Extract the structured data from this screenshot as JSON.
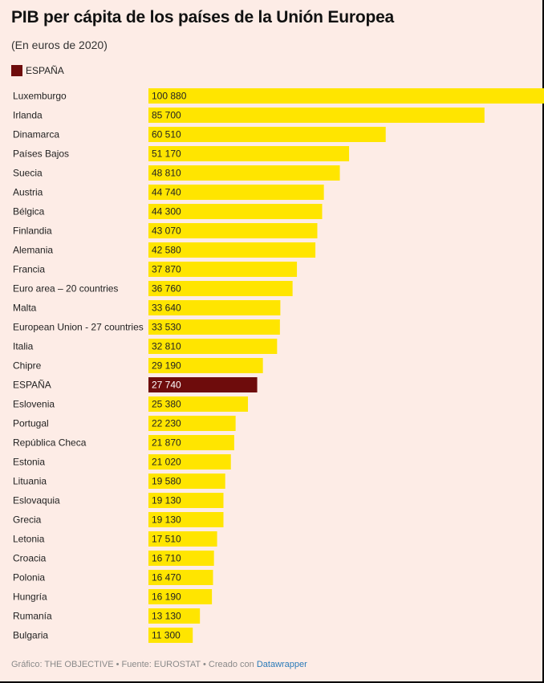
{
  "chart_data": {
    "type": "bar",
    "orientation": "horizontal",
    "title": "PIB per cápita de los países de la Unión Europea",
    "subtitle": "(En euros de 2020)",
    "legend": {
      "label": "ESPAÑA",
      "color": "#6e0c0c"
    },
    "colors": {
      "default": "#ffe500",
      "highlight": "#6e0c0c"
    },
    "highlight": "ESPAÑA",
    "xlim": [
      0,
      100880
    ],
    "categories": [
      "Luxemburgo",
      "Irlanda",
      "Dinamarca",
      "Países Bajos",
      "Suecia",
      "Austria",
      "Bélgica",
      "Finlandia",
      "Alemania",
      "Francia",
      "Euro area – 20 countries",
      "Malta",
      "European Union - 27 countries",
      "Italia",
      "Chipre",
      "ESPAÑA",
      "Eslovenia",
      "Portugal",
      "República Checa",
      "Estonia",
      "Lituania",
      "Eslovaquia",
      "Grecia",
      "Letonia",
      "Croacia",
      "Polonia",
      "Hungría",
      "Rumanía",
      "Bulgaria"
    ],
    "values": [
      100880,
      85700,
      60510,
      51170,
      48810,
      44740,
      44300,
      43070,
      42580,
      37870,
      36760,
      33640,
      33530,
      32810,
      29190,
      27740,
      25380,
      22230,
      21870,
      21020,
      19580,
      19130,
      19130,
      17510,
      16710,
      16470,
      16190,
      13130,
      11300
    ],
    "value_labels": [
      "100 880",
      "85 700",
      "60 510",
      "51 170",
      "48 810",
      "44 740",
      "44 300",
      "43 070",
      "42 580",
      "37 870",
      "36 760",
      "33 640",
      "33 530",
      "32 810",
      "29 190",
      "27 740",
      "25 380",
      "22 230",
      "21 870",
      "21 020",
      "19 580",
      "19 130",
      "19 130",
      "17 510",
      "16 710",
      "16 470",
      "16 190",
      "13 130",
      "11 300"
    ]
  },
  "footer": {
    "text": "Gráfico: THE OBJECTIVE • Fuente: EUROSTAT • Creado con ",
    "link": "Datawrapper"
  }
}
